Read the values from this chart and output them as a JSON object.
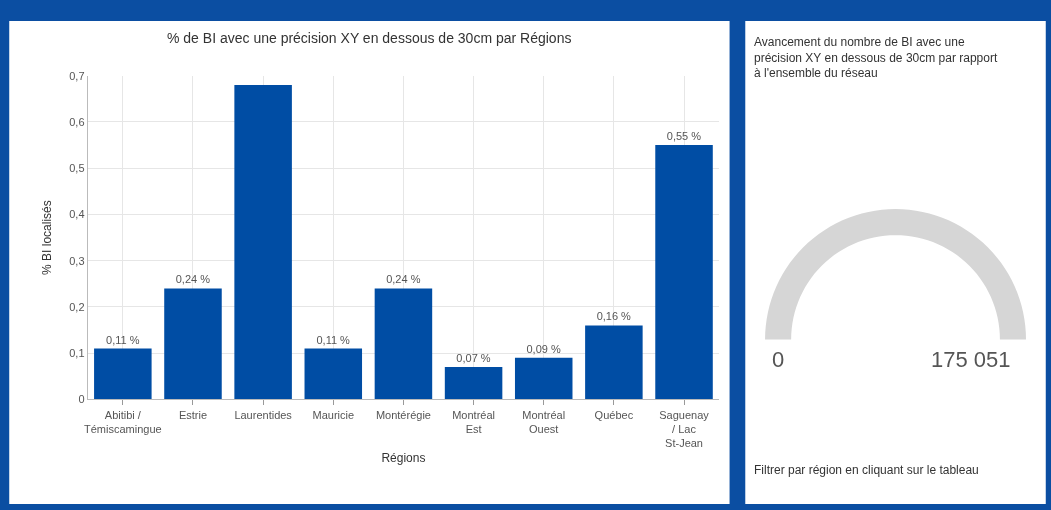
{
  "chart_data": [
    {
      "type": "bar",
      "title": "% de BI avec une précision XY en dessous de 30cm par Régions",
      "xlabel": "Régions",
      "ylabel": "% BI localisés",
      "categories": [
        "Abitibi / Témiscamingue",
        "Estrie",
        "Laurentides",
        "Mauricie",
        "Montérégie",
        "Montréal Est",
        "Montréal Ouest",
        "Québec",
        "Saguenay / Lac St-Jean"
      ],
      "values": [
        0.11,
        0.24,
        0.68,
        0.11,
        0.24,
        0.07,
        0.09,
        0.16,
        0.55
      ],
      "value_labels": [
        "0,11 %",
        "0,24 %",
        null,
        "0,11 %",
        "0,24 %",
        "0,07 %",
        "0,09 %",
        "0,16 %",
        "0,55 %"
      ],
      "color": "#004da4",
      "ylim": [
        0,
        0.7
      ],
      "yticks": [
        {
          "value": 0,
          "label": "0"
        },
        {
          "value": 0.1,
          "label": "0,1"
        },
        {
          "value": 0.2,
          "label": "0,2"
        },
        {
          "value": 0.3,
          "label": "0,3"
        },
        {
          "value": 0.4,
          "label": "0,4"
        },
        {
          "value": 0.5,
          "label": "0,5"
        },
        {
          "value": 0.6,
          "label": "0,6"
        },
        {
          "value": 0.7,
          "label": "0,7"
        }
      ],
      "grid": true
    },
    {
      "type": "other",
      "title": "Avancement du nombre de BI avec une précision XY en dessous de 30cm par rapport à l'ensemble du réseau",
      "color": "#d6d6d6",
      "annotations": [
        "0",
        "175 051",
        "Filtrer par région en cliquant sur le tableau"
      ]
    }
  ]
}
